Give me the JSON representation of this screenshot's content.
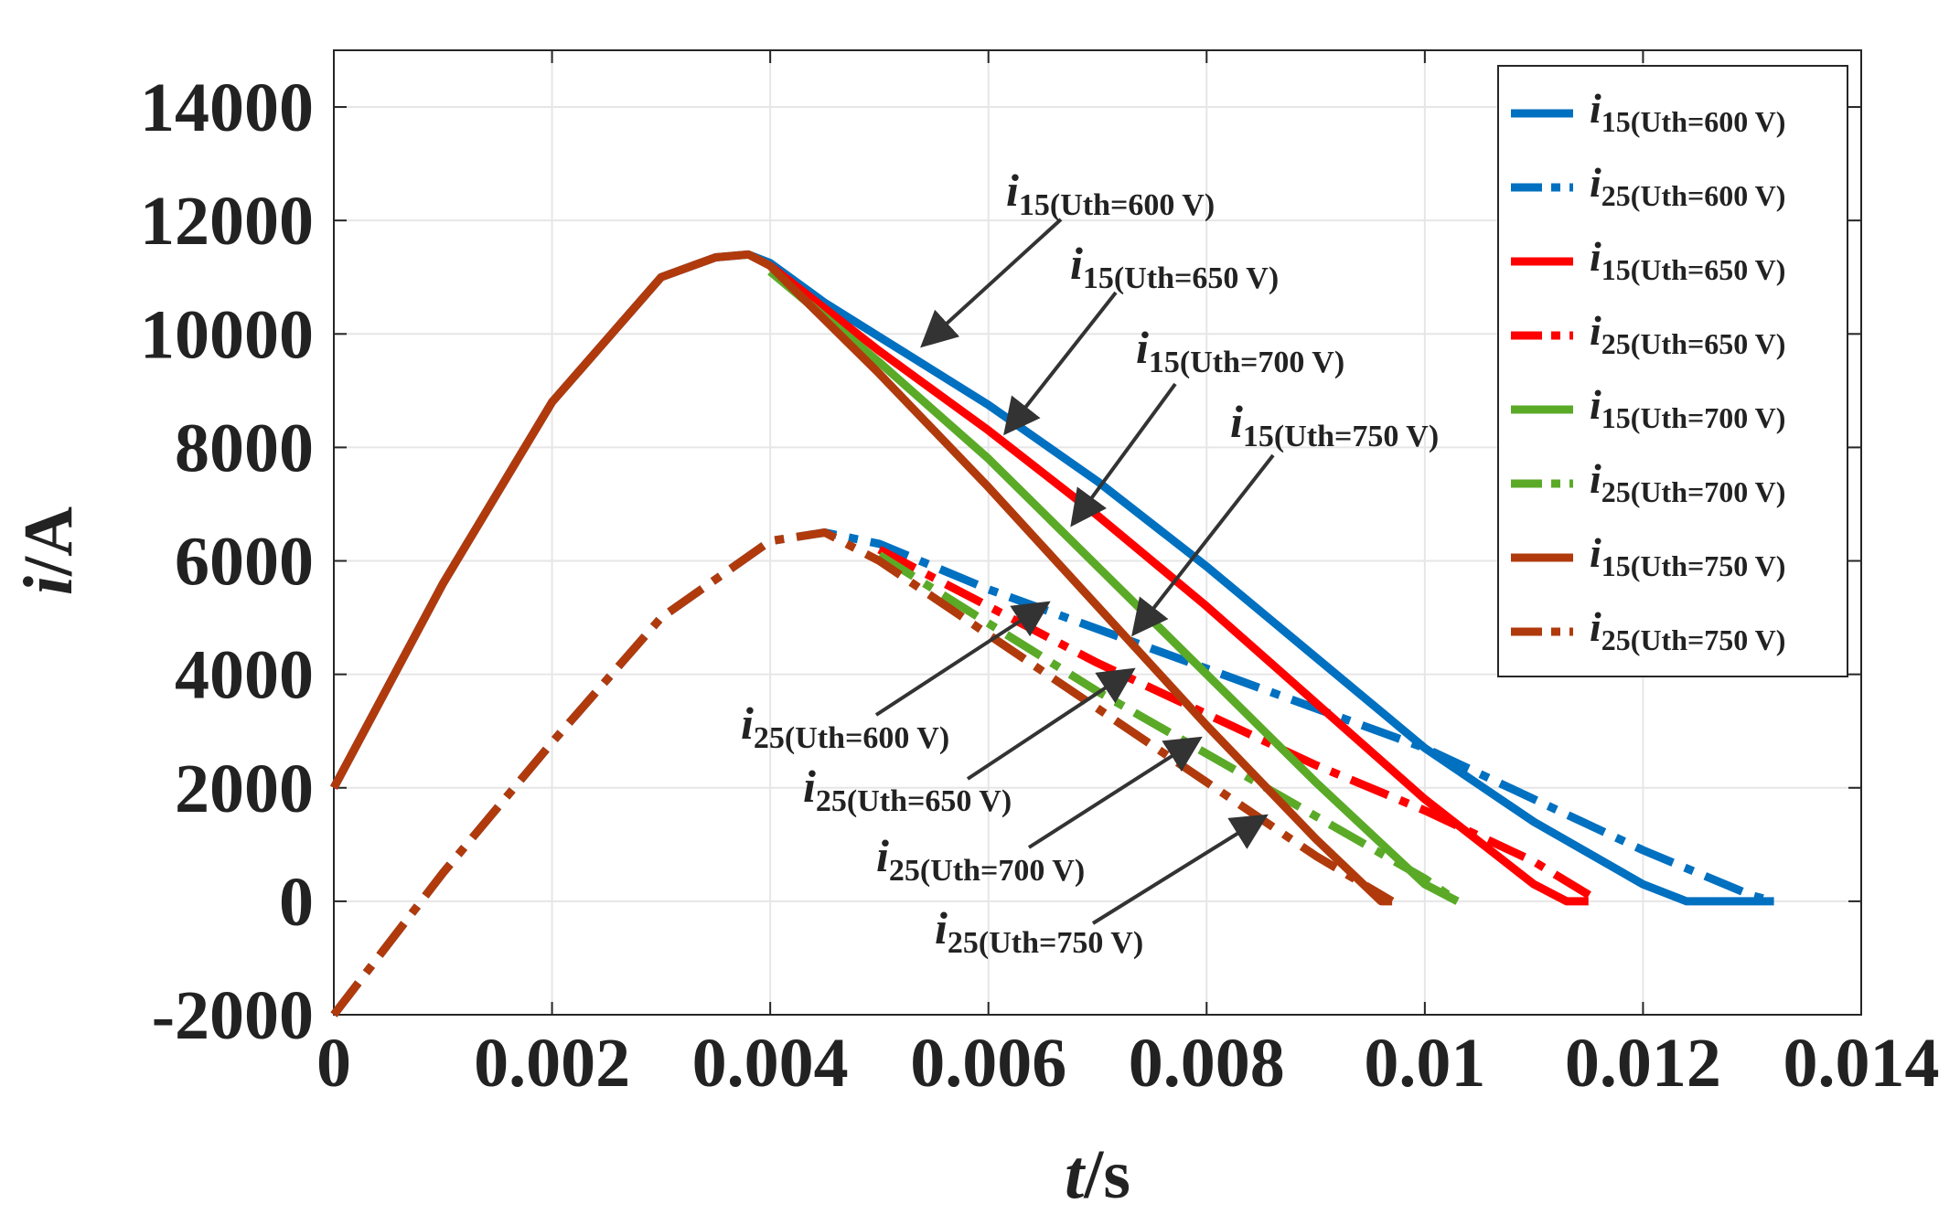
{
  "chart_data": {
    "type": "line",
    "title": "",
    "xlabel": {
      "italic": "t",
      "rest": "/s"
    },
    "ylabel": {
      "italic": "i",
      "rest": "/A"
    },
    "xlim": [
      0,
      0.014
    ],
    "ylim": [
      -2000,
      15000
    ],
    "xticks": [
      0,
      0.002,
      0.004,
      0.006,
      0.008,
      0.01,
      0.012,
      0.014
    ],
    "xtick_labels": [
      "0",
      "0.002",
      "0.004",
      "0.006",
      "0.008",
      "0.01",
      "0.012",
      "0.014"
    ],
    "yticks": [
      -2000,
      0,
      2000,
      4000,
      6000,
      8000,
      10000,
      12000,
      14000
    ],
    "ytick_labels": [
      "-2000",
      "0",
      "2000",
      "4000",
      "6000",
      "8000",
      "10000",
      "12000",
      "14000"
    ],
    "grid": true,
    "legend_position": "top-right",
    "series": [
      {
        "name": "i15(Uth=600 V)",
        "var": "i",
        "sub": "15(Uth=600 V)",
        "color": "#0070c0",
        "dash": "solid",
        "x": [
          0,
          0.001,
          0.002,
          0.003,
          0.0035,
          0.0038,
          0.004,
          0.0045,
          0.005,
          0.006,
          0.007,
          0.008,
          0.009,
          0.01,
          0.011,
          0.012,
          0.0124,
          0.0126,
          0.0132
        ],
        "y": [
          2000,
          5600,
          8800,
          11000,
          11350,
          11400,
          11250,
          10550,
          9950,
          8750,
          7400,
          5900,
          4300,
          2700,
          1400,
          300,
          0,
          0,
          0
        ]
      },
      {
        "name": "i25(Uth=600 V)",
        "var": "i",
        "sub": "25(Uth=600 V)",
        "color": "#0070c0",
        "dash": "dashdot",
        "x": [
          0,
          0.001,
          0.002,
          0.003,
          0.004,
          0.0045,
          0.005,
          0.006,
          0.007,
          0.008,
          0.009,
          0.01,
          0.011,
          0.012,
          0.013,
          0.0132
        ],
        "y": [
          -2000,
          500,
          2800,
          5000,
          6350,
          6500,
          6300,
          5500,
          4800,
          4100,
          3400,
          2700,
          1800,
          900,
          100,
          0
        ]
      },
      {
        "name": "i15(Uth=650 V)",
        "var": "i",
        "sub": "15(Uth=650 V)",
        "color": "#ff0000",
        "dash": "solid",
        "x": [
          0.004,
          0.005,
          0.006,
          0.007,
          0.008,
          0.009,
          0.01,
          0.011,
          0.0113,
          0.0115
        ],
        "y": [
          11200,
          9700,
          8300,
          6800,
          5200,
          3500,
          1800,
          300,
          0,
          0
        ]
      },
      {
        "name": "i25(Uth=650 V)",
        "var": "i",
        "sub": "25(Uth=650 V)",
        "color": "#ff0000",
        "dash": "dashdot",
        "x": [
          0.005,
          0.006,
          0.007,
          0.008,
          0.009,
          0.01,
          0.011,
          0.0116
        ],
        "y": [
          6200,
          5200,
          4200,
          3300,
          2400,
          1600,
          700,
          0
        ]
      },
      {
        "name": "i15(Uth=700 V)",
        "var": "i",
        "sub": "15(Uth=700 V)",
        "color": "#5aaa28",
        "dash": "solid",
        "x": [
          0.004,
          0.005,
          0.006,
          0.007,
          0.008,
          0.009,
          0.01,
          0.0103
        ],
        "y": [
          11100,
          9500,
          7800,
          5900,
          4000,
          2100,
          300,
          0
        ]
      },
      {
        "name": "i25(Uth=700 V)",
        "var": "i",
        "sub": "25(Uth=700 V)",
        "color": "#5aaa28",
        "dash": "dashdot",
        "x": [
          0.005,
          0.006,
          0.007,
          0.008,
          0.009,
          0.01,
          0.0103
        ],
        "y": [
          6100,
          4900,
          3700,
          2600,
          1500,
          400,
          0
        ]
      },
      {
        "name": "i15(Uth=750 V)",
        "var": "i",
        "sub": "15(Uth=750 V)",
        "color": "#b13a0c",
        "dash": "solid",
        "x": [
          0,
          0.001,
          0.002,
          0.003,
          0.0035,
          0.0038,
          0.004,
          0.005,
          0.006,
          0.007,
          0.008,
          0.009,
          0.0096,
          0.0097
        ],
        "y": [
          2000,
          5600,
          8800,
          11000,
          11350,
          11400,
          11200,
          9300,
          7300,
          5200,
          3100,
          1100,
          0,
          0
        ]
      },
      {
        "name": "i25(Uth=750 V)",
        "var": "i",
        "sub": "25(Uth=750 V)",
        "color": "#b13a0c",
        "dash": "dashdot",
        "x": [
          0,
          0.001,
          0.002,
          0.003,
          0.004,
          0.0045,
          0.005,
          0.006,
          0.007,
          0.008,
          0.009,
          0.0097
        ],
        "y": [
          -2000,
          500,
          2800,
          5000,
          6350,
          6500,
          6000,
          4700,
          3400,
          2100,
          800,
          0
        ]
      }
    ],
    "annotations": [
      {
        "var": "i",
        "sub": "15(Uth=600 V)",
        "target": "i15(Uth=600 V)"
      },
      {
        "var": "i",
        "sub": "15(Uth=650 V)",
        "target": "i15(Uth=650 V)"
      },
      {
        "var": "i",
        "sub": "15(Uth=700 V)",
        "target": "i15(Uth=700 V)"
      },
      {
        "var": "i",
        "sub": "15(Uth=750 V)",
        "target": "i15(Uth=750 V)"
      },
      {
        "var": "i",
        "sub": "25(Uth=600 V)",
        "target": "i25(Uth=600 V)"
      },
      {
        "var": "i",
        "sub": "25(Uth=650 V)",
        "target": "i25(Uth=650 V)"
      },
      {
        "var": "i",
        "sub": "25(Uth=700 V)",
        "target": "i25(Uth=700 V)"
      },
      {
        "var": "i",
        "sub": "25(Uth=750 V)",
        "target": "i25(Uth=750 V)"
      }
    ]
  }
}
